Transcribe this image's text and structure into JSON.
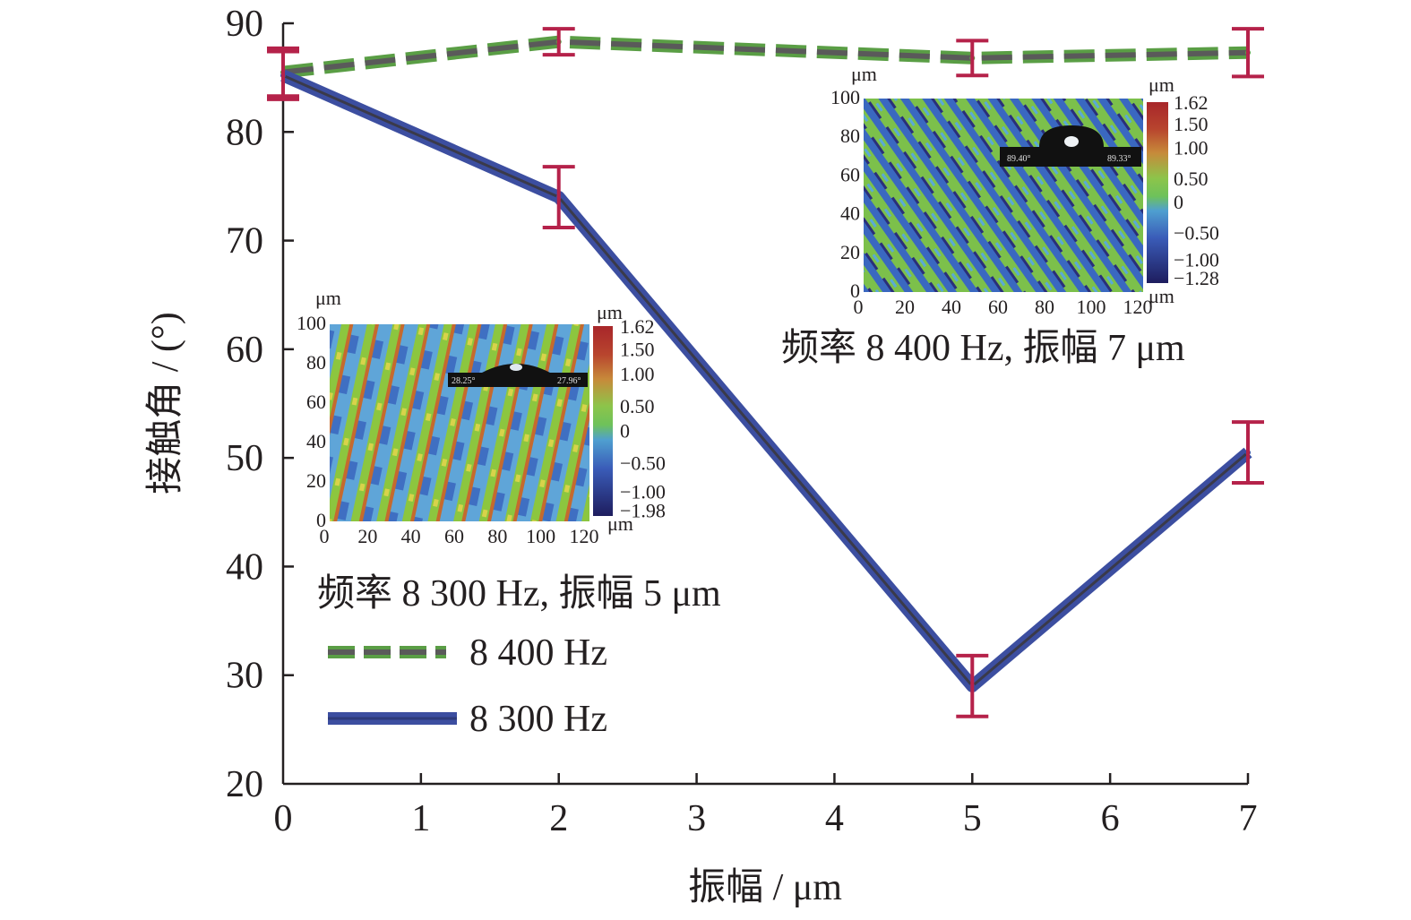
{
  "chart_data": {
    "type": "line",
    "xlabel": "振幅 / μm",
    "ylabel": "接触角 / (°)",
    "xlim": [
      0,
      7
    ],
    "ylim": [
      20,
      90
    ],
    "x_ticks": [
      "0",
      "1",
      "2",
      "3",
      "4",
      "5",
      "6",
      "7"
    ],
    "y_ticks": [
      "20",
      "30",
      "40",
      "50",
      "60",
      "70",
      "80",
      "90"
    ],
    "grid": false,
    "legend_position": "bottom-left",
    "series": [
      {
        "name": "8 400 Hz",
        "style": "dashed",
        "color": "#5a9e45",
        "dash_color": "#5a5a5a",
        "x": [
          0,
          2,
          5,
          7
        ],
        "y": [
          85.5,
          88.3,
          86.8,
          87.3
        ],
        "error": [
          2.2,
          1.2,
          1.6,
          2.2
        ]
      },
      {
        "name": "8 300 Hz",
        "style": "solid",
        "color": "#3c4ea0",
        "x": [
          0,
          2,
          5,
          7
        ],
        "y": [
          85.2,
          74.0,
          29.0,
          50.5
        ],
        "error": [
          2.2,
          2.8,
          2.8,
          2.8
        ]
      }
    ],
    "error_bar_color": "#b5224a",
    "insets": [
      {
        "caption": "频率 8 300 Hz, 振幅 5 μm",
        "unit": "μm",
        "x_ticks": [
          "0",
          "20",
          "40",
          "60",
          "80",
          "100",
          "120"
        ],
        "y_ticks": [
          "0",
          "20",
          "40",
          "60",
          "80",
          "100"
        ],
        "colorbar_ticks": [
          "1.62",
          "1.50",
          "1.00",
          "0.50",
          "0",
          "−0.50",
          "−1.00",
          "−1.98"
        ],
        "droplet_labels": [
          "28.25°",
          "27.96°"
        ]
      },
      {
        "caption": "频率 8 400 Hz, 振幅 7 μm",
        "unit": "μm",
        "x_ticks": [
          "0",
          "20",
          "40",
          "60",
          "80",
          "100",
          "120"
        ],
        "y_ticks": [
          "0",
          "20",
          "40",
          "60",
          "80",
          "100"
        ],
        "colorbar_ticks": [
          "1.62",
          "1.50",
          "1.00",
          "0.50",
          "0",
          "−0.50",
          "−1.00",
          "−1.28"
        ],
        "droplet_labels": [
          "89.40°",
          "89.33°"
        ]
      }
    ]
  }
}
